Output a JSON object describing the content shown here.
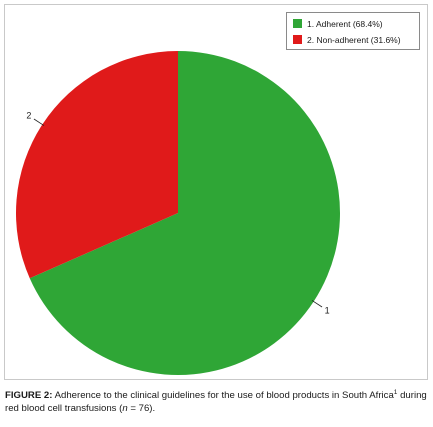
{
  "chart_data": {
    "type": "pie",
    "categories": [
      "1. Adherent (68.4%)",
      "2. Non-adherent (31.6%)"
    ],
    "values": [
      68.4,
      31.6
    ],
    "slice_labels": [
      "1",
      "2"
    ],
    "colors": [
      "#2fa636",
      "#e01a1a"
    ],
    "legend_position": "top-right",
    "start_angle": "12 o'clock",
    "direction": "clockwise"
  },
  "caption": {
    "label": "FIGURE 2:",
    "text_part1": " Adherence to the clinical guidelines for the use of blood products in South Africa",
    "superscript": "1",
    "text_part2": " during red blood cell transfusions (",
    "n_symbol": "n",
    "text_part3": " = 76)."
  }
}
